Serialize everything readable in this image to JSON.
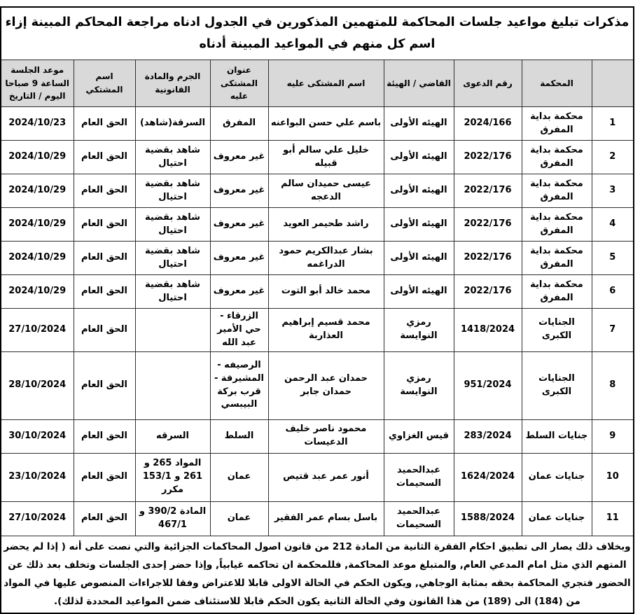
{
  "title": "مذكرات تبليغ مواعيد جلسات المحاكمة للمتهمين المذكورين في الجدول ادناه مراجعة المحاكم المبينة إزاء اسم كل منهم في المواعيد المبينة أدناه",
  "table": {
    "headers": [
      "",
      "المحكمة",
      "رقم الدعوى",
      "القاضي / الهيئة",
      "اسم المشتكى عليه",
      "عنوان المشتكى عليه",
      "الجرم والمادة القانونية",
      "اسم المشتكي",
      "موعد الجلسة الساعة 9 صباحا اليوم / التاريخ"
    ],
    "rows": [
      {
        "num": "1",
        "court": "محكمة بداية المفرق",
        "case_no": "2024/166",
        "judge": "الهيئه الأولى",
        "defendant": "باسم علي حسن البواعنه",
        "address": "المفرق",
        "crime": "السرقة(شاهد)",
        "complainant": "الحق العام",
        "date": "2024/10/23"
      },
      {
        "num": "2",
        "court": "محكمة بداية المفرق",
        "case_no": "2022/176",
        "judge": "الهيئه الأولى",
        "defendant": "خليل علي سالم أبو قبيله",
        "address": "غير معروف",
        "crime": "شاهد بقضية احتيال",
        "complainant": "الحق العام",
        "date": "2024/10/29"
      },
      {
        "num": "3",
        "court": "محكمة بداية المفرق",
        "case_no": "2022/176",
        "judge": "الهيئه الأولى",
        "defendant": "عيسى حميدان سالم الدعجه",
        "address": "غير معروف",
        "crime": "شاهد بقضية احتيال",
        "complainant": "الحق العام",
        "date": "2024/10/29"
      },
      {
        "num": "4",
        "court": "محكمة بداية المفرق",
        "case_no": "2022/176",
        "judge": "الهيئه الأولى",
        "defendant": "راشد طحيمر العويد",
        "address": "غير معروف",
        "crime": "شاهد بقضية احتيال",
        "complainant": "الحق العام",
        "date": "2024/10/29"
      },
      {
        "num": "5",
        "court": "محكمة بداية المفرق",
        "case_no": "2022/176",
        "judge": "الهيئه الأولى",
        "defendant": "بشار عبدالكريم حمود الدراغمه",
        "address": "غير معروف",
        "crime": "شاهد بقضية احتيال",
        "complainant": "الحق العام",
        "date": "2024/10/29"
      },
      {
        "num": "6",
        "court": "محكمة بداية المفرق",
        "case_no": "2022/176",
        "judge": "الهيئه الأولى",
        "defendant": "محمد خالد أبو التوت",
        "address": "غير معروف",
        "crime": "شاهد بقضية احتيال",
        "complainant": "الحق العام",
        "date": "2024/10/29"
      },
      {
        "num": "7",
        "court": "الجنايات الكبرى",
        "case_no": "1418/2024",
        "judge": "رمزي النوايسة",
        "defendant": "محمد قسيم إبراهيم العذاربة",
        "address": "الزرقاء - حي الأمير عبد الله",
        "crime": "",
        "complainant": "الحق العام",
        "date": "27/10/2024"
      },
      {
        "num": "8",
        "court": "الجنايات الكبرى",
        "case_no": "951/2024",
        "judge": "رمزي النوايسة",
        "defendant": "حمدان عبد الرحمن حمدان جابر",
        "address": "الرصيفه - المشيرفة - قرب بركة البيبسي",
        "crime": "",
        "complainant": "الحق العام",
        "date": "28/10/2024"
      },
      {
        "num": "9",
        "court": "جنايات السلط",
        "case_no": "283/2024",
        "judge": "قيس الغزاوي",
        "defendant": "محمود ناصر خليف الدعيسات",
        "address": "السلط",
        "crime": "السرقه",
        "complainant": "الحق العام",
        "date": "30/10/2024"
      },
      {
        "num": "10",
        "court": "جنايات عمان",
        "case_no": "1624/2024",
        "judge": "عبدالحميد السحيمات",
        "defendant": "أنور عمر عبد قتيص",
        "address": "عمان",
        "crime": "المواد 265 و 261 و 153/1 مكرر",
        "complainant": "الحق العام",
        "date": "23/10/2024"
      },
      {
        "num": "11",
        "court": "جنايات عمان",
        "case_no": "1588/2024",
        "judge": "عبدالحميد السحيمات",
        "defendant": "باسل بسام عمر الفقير",
        "address": "عمان",
        "crime": "المادة 390/2 و 467/1",
        "complainant": "الحق العام",
        "date": "27/10/2024"
      }
    ]
  },
  "footer": "وبخلاف ذلك يصار الى تطبيق احكام الفقرة الثانية من المادة 212 من قانون اصول المحاكمات الجزائية  والتي نصت على أنه ( إذا لم يحضر المتهم الذي مثل امام المدعي العام, والمتبلغ موعد المحاكمة, فللمحكمة ان تحاكمه غيابياً, وإذا حضر إحدى الجلسات وتخلف بعد ذلك عن الحضور فتجري المحاكمة بحقه بمثابة الوجاهي, ويكون الحكم في الحالة الاولى قابلا للاعتراض وفقا للاجراءات المنصوص عليها في المواد من (184) الى (189) من هذا القانون وفي الحالة الثانية يكون الحكم قابلا للاستئناف ضمن المواعيد المحددة لذلك).",
  "colors": {
    "header_background": "#d9d9d9",
    "border": "#000000",
    "text": "#000000",
    "page_background": "#ffffff"
  }
}
